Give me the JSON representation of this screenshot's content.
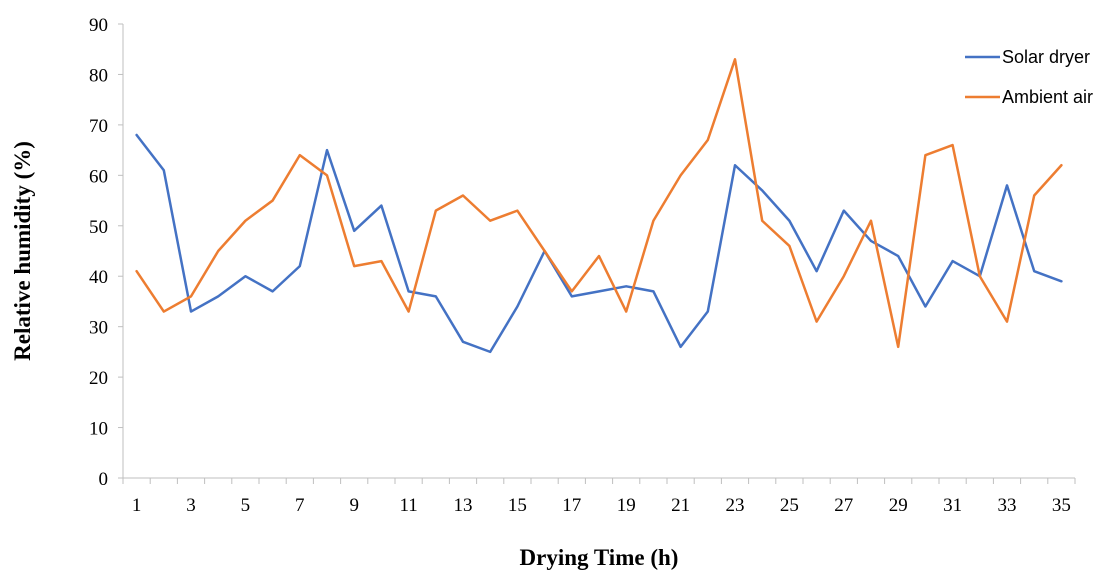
{
  "chart_data": {
    "type": "line",
    "title": "",
    "xlabel": "Drying Time (h)",
    "ylabel": "Relative humidity (%)",
    "x": [
      1,
      2,
      3,
      4,
      5,
      6,
      7,
      8,
      9,
      10,
      11,
      12,
      13,
      14,
      15,
      16,
      17,
      18,
      19,
      20,
      21,
      22,
      23,
      24,
      25,
      26,
      27,
      28,
      29,
      30,
      31,
      32,
      33,
      34,
      35
    ],
    "x_tick_labels": [
      "1",
      "3",
      "5",
      "7",
      "9",
      "11",
      "13",
      "15",
      "17",
      "19",
      "21",
      "23",
      "25",
      "27",
      "29",
      "31",
      "33",
      "35"
    ],
    "ylim": [
      0,
      90
    ],
    "y_ticks": [
      0,
      10,
      20,
      30,
      40,
      50,
      60,
      70,
      80,
      90
    ],
    "grid": false,
    "legend_position": "top-right",
    "series": [
      {
        "name": "Solar dryer",
        "color": "#4472c4",
        "values": [
          68,
          61,
          33,
          36,
          40,
          37,
          42,
          65,
          49,
          54,
          37,
          36,
          27,
          25,
          34,
          45,
          36,
          37,
          38,
          37,
          26,
          33,
          62,
          57,
          51,
          41,
          53,
          47,
          44,
          34,
          43,
          40,
          58,
          41,
          39
        ]
      },
      {
        "name": "Ambient air",
        "color": "#ed7d31",
        "values": [
          41,
          33,
          36,
          45,
          51,
          55,
          64,
          60,
          42,
          43,
          33,
          53,
          56,
          51,
          53,
          45,
          37,
          44,
          33,
          51,
          60,
          67,
          83,
          51,
          46,
          31,
          40,
          51,
          26,
          64,
          66,
          40,
          31,
          56,
          62
        ]
      }
    ]
  }
}
